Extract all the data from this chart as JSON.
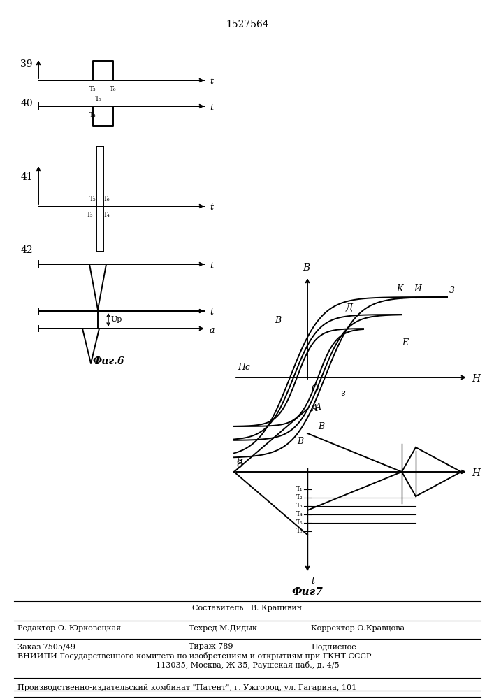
{
  "title": "1527564",
  "background": "#ffffff",
  "lw": 1.4,
  "footer_line1": "Составитель   В. Крапивин",
  "footer_line2a": "Редактор О. Юрковецкая",
  "footer_line2b": "Техред М.Дидык",
  "footer_line2c": "Корректор О.Кравцова",
  "footer_line3a": "Заказ 7505/49",
  "footer_line3b": "Тираж 789",
  "footer_line3c": "Подписное",
  "footer_line4": "ВНИИПИ Государственного комитета по изобретениям и открытиям при ГКНТ СССР",
  "footer_line5": "113035, Москва, Ж-35, Раушская наб., д. 4/5",
  "footer_line6": "Производственно-издательский комбинат \"Патент\", г. Ужгород, ул. Гагарина, 101"
}
